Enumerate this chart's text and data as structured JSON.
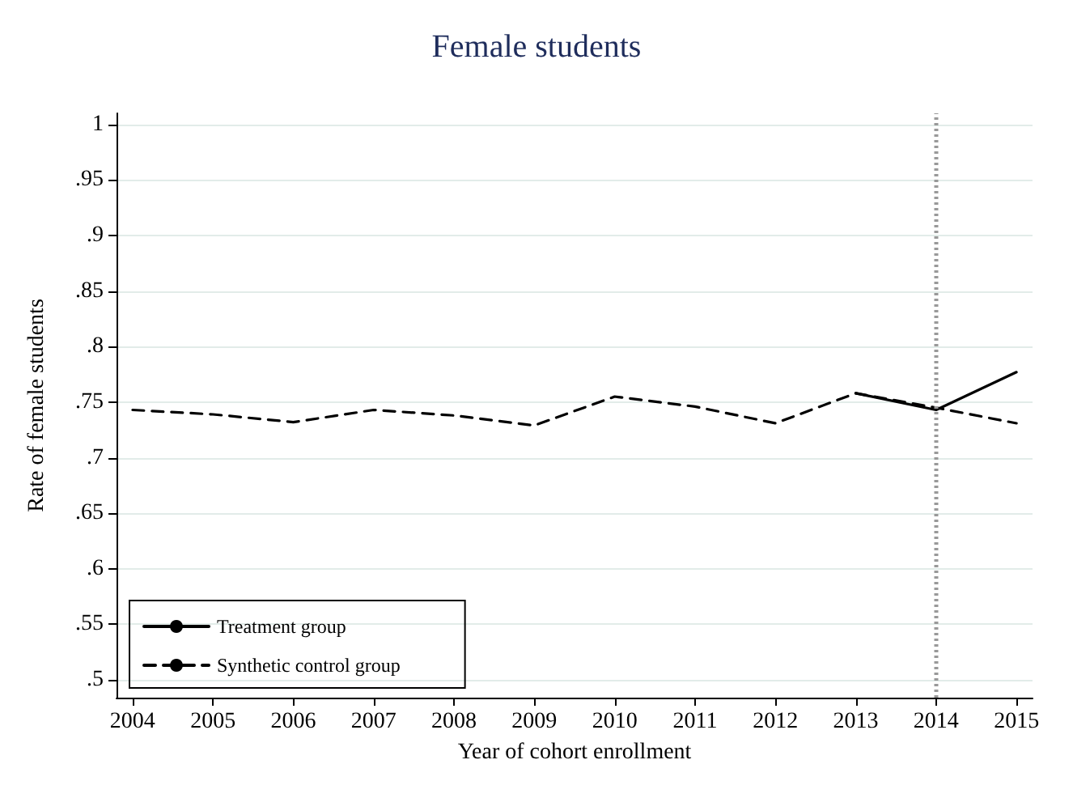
{
  "chart_data": {
    "type": "line",
    "title": "Female students",
    "xlabel": "Year of cohort enrollment",
    "ylabel": "Rate of female students",
    "x": [
      2004,
      2005,
      2006,
      2007,
      2008,
      2009,
      2010,
      2011,
      2012,
      2013,
      2014,
      2015
    ],
    "series": [
      {
        "name": "Treatment group",
        "color": "#000000",
        "line_style": "solid",
        "x": [
          2013,
          2014,
          2015
        ],
        "values": [
          0.758,
          0.743,
          0.777
        ]
      },
      {
        "name": "Synthetic control group",
        "color": "#000000",
        "line_style": "dashed",
        "values": [
          0.743,
          0.739,
          0.732,
          0.743,
          0.738,
          0.729,
          0.755,
          0.746,
          0.731,
          0.758,
          0.745,
          0.731
        ]
      }
    ],
    "xlim": [
      2003.8,
      2015.2
    ],
    "xticks": [
      2004,
      2005,
      2006,
      2007,
      2008,
      2009,
      2010,
      2011,
      2012,
      2013,
      2014,
      2015
    ],
    "ylim": [
      0.484,
      1.01
    ],
    "yticks": [
      {
        "value": 0.5,
        "label": ".5"
      },
      {
        "value": 0.55,
        "label": ".55"
      },
      {
        "value": 0.6,
        "label": ".6"
      },
      {
        "value": 0.65,
        "label": ".65"
      },
      {
        "value": 0.7,
        "label": ".7"
      },
      {
        "value": 0.75,
        "label": ".75"
      },
      {
        "value": 0.8,
        "label": ".8"
      },
      {
        "value": 0.85,
        "label": ".85"
      },
      {
        "value": 0.9,
        "label": ".9"
      },
      {
        "value": 0.95,
        "label": ".95"
      },
      {
        "value": 1,
        "label": "1"
      }
    ],
    "ref_lines": [
      {
        "axis": "x",
        "value": 2014,
        "color": "#999999",
        "line_style": "dotted"
      }
    ],
    "grid": "y",
    "legend": "bottom left",
    "marker": "none"
  }
}
